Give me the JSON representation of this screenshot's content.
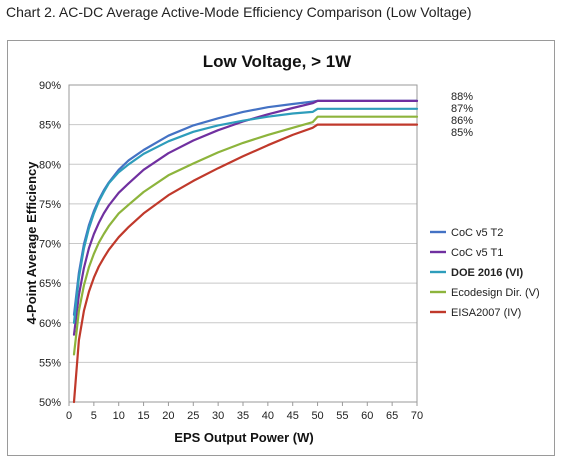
{
  "caption": "Chart 2. AC-DC Average Active-Mode Efficiency Comparison (Low Voltage)",
  "chart_data": {
    "type": "line",
    "title": "Low Voltage, > 1W",
    "xlabel": "EPS Output Power (W)",
    "ylabel": "4-Point Average Efficiency",
    "xlim": [
      0,
      70
    ],
    "ylim": [
      50,
      90
    ],
    "xticks": [
      "0",
      "5",
      "10",
      "15",
      "20",
      "25",
      "30",
      "35",
      "40",
      "45",
      "50",
      "55",
      "60",
      "65",
      "70"
    ],
    "yticks": [
      "50%",
      "55%",
      "60%",
      "65%",
      "70%",
      "75%",
      "80%",
      "85%",
      "90%"
    ],
    "grid": "horizontal",
    "legend_position": "right",
    "end_labels": [
      "88%",
      "87%",
      "86%",
      "85%"
    ],
    "series": [
      {
        "name": "CoC v5 T2",
        "color": "#4472c4",
        "bold": false,
        "x": [
          1,
          2,
          3,
          4,
          5,
          6,
          7,
          8,
          10,
          12,
          15,
          20,
          25,
          30,
          35,
          40,
          45,
          49,
          50,
          60,
          70
        ],
        "y": [
          61.0,
          66.3,
          69.9,
          72.3,
          74.1,
          75.5,
          76.7,
          77.7,
          79.3,
          80.5,
          81.8,
          83.6,
          84.9,
          85.8,
          86.6,
          87.2,
          87.6,
          87.9,
          88.0,
          88.0,
          88.0
        ]
      },
      {
        "name": "CoC v5 T1",
        "color": "#7030a0",
        "bold": false,
        "x": [
          1,
          2,
          3,
          4,
          5,
          6,
          7,
          8,
          10,
          12,
          15,
          20,
          25,
          30,
          35,
          40,
          45,
          49,
          50,
          60,
          70
        ],
        "y": [
          58.5,
          63.5,
          66.9,
          69.4,
          71.2,
          72.6,
          73.8,
          74.8,
          76.4,
          77.6,
          79.3,
          81.4,
          83.0,
          84.3,
          85.4,
          86.3,
          87.1,
          87.7,
          88.0,
          88.0,
          88.0
        ]
      },
      {
        "name": "DOE 2016 (VI)",
        "color": "#2e9dbb",
        "bold": true,
        "x": [
          1,
          2,
          3,
          4,
          5,
          6,
          7,
          8,
          10,
          12,
          15,
          20,
          25,
          30,
          35,
          40,
          45,
          49,
          50,
          60,
          70
        ],
        "y": [
          60.0,
          65.7,
          69.4,
          71.9,
          73.8,
          75.3,
          76.5,
          77.6,
          79.0,
          80.0,
          81.3,
          82.9,
          84.1,
          84.9,
          85.5,
          86.0,
          86.4,
          86.6,
          87.0,
          87.0,
          87.0
        ]
      },
      {
        "name": "Ecodesign Dir. (V)",
        "color": "#8db43c",
        "bold": false,
        "x": [
          1,
          2,
          3,
          4,
          5,
          6,
          7,
          8,
          10,
          12,
          15,
          20,
          25,
          30,
          35,
          40,
          45,
          49,
          50,
          60,
          70
        ],
        "y": [
          56.0,
          61.5,
          64.7,
          67.0,
          68.7,
          70.1,
          71.2,
          72.2,
          73.8,
          74.9,
          76.5,
          78.6,
          80.1,
          81.5,
          82.7,
          83.7,
          84.6,
          85.3,
          86.0,
          86.0,
          86.0
        ]
      },
      {
        "name": "EISA2007 (IV)",
        "color": "#c0392b",
        "bold": false,
        "x": [
          1,
          2,
          3,
          4,
          5,
          6,
          7,
          8,
          10,
          12,
          15,
          20,
          25,
          30,
          35,
          40,
          45,
          49,
          50,
          60,
          70
        ],
        "y": [
          50.0,
          57.8,
          61.5,
          63.9,
          65.7,
          67.1,
          68.2,
          69.2,
          70.8,
          72.1,
          73.8,
          76.1,
          77.9,
          79.5,
          81.0,
          82.4,
          83.7,
          84.6,
          85.0,
          85.0,
          85.0
        ]
      }
    ]
  }
}
